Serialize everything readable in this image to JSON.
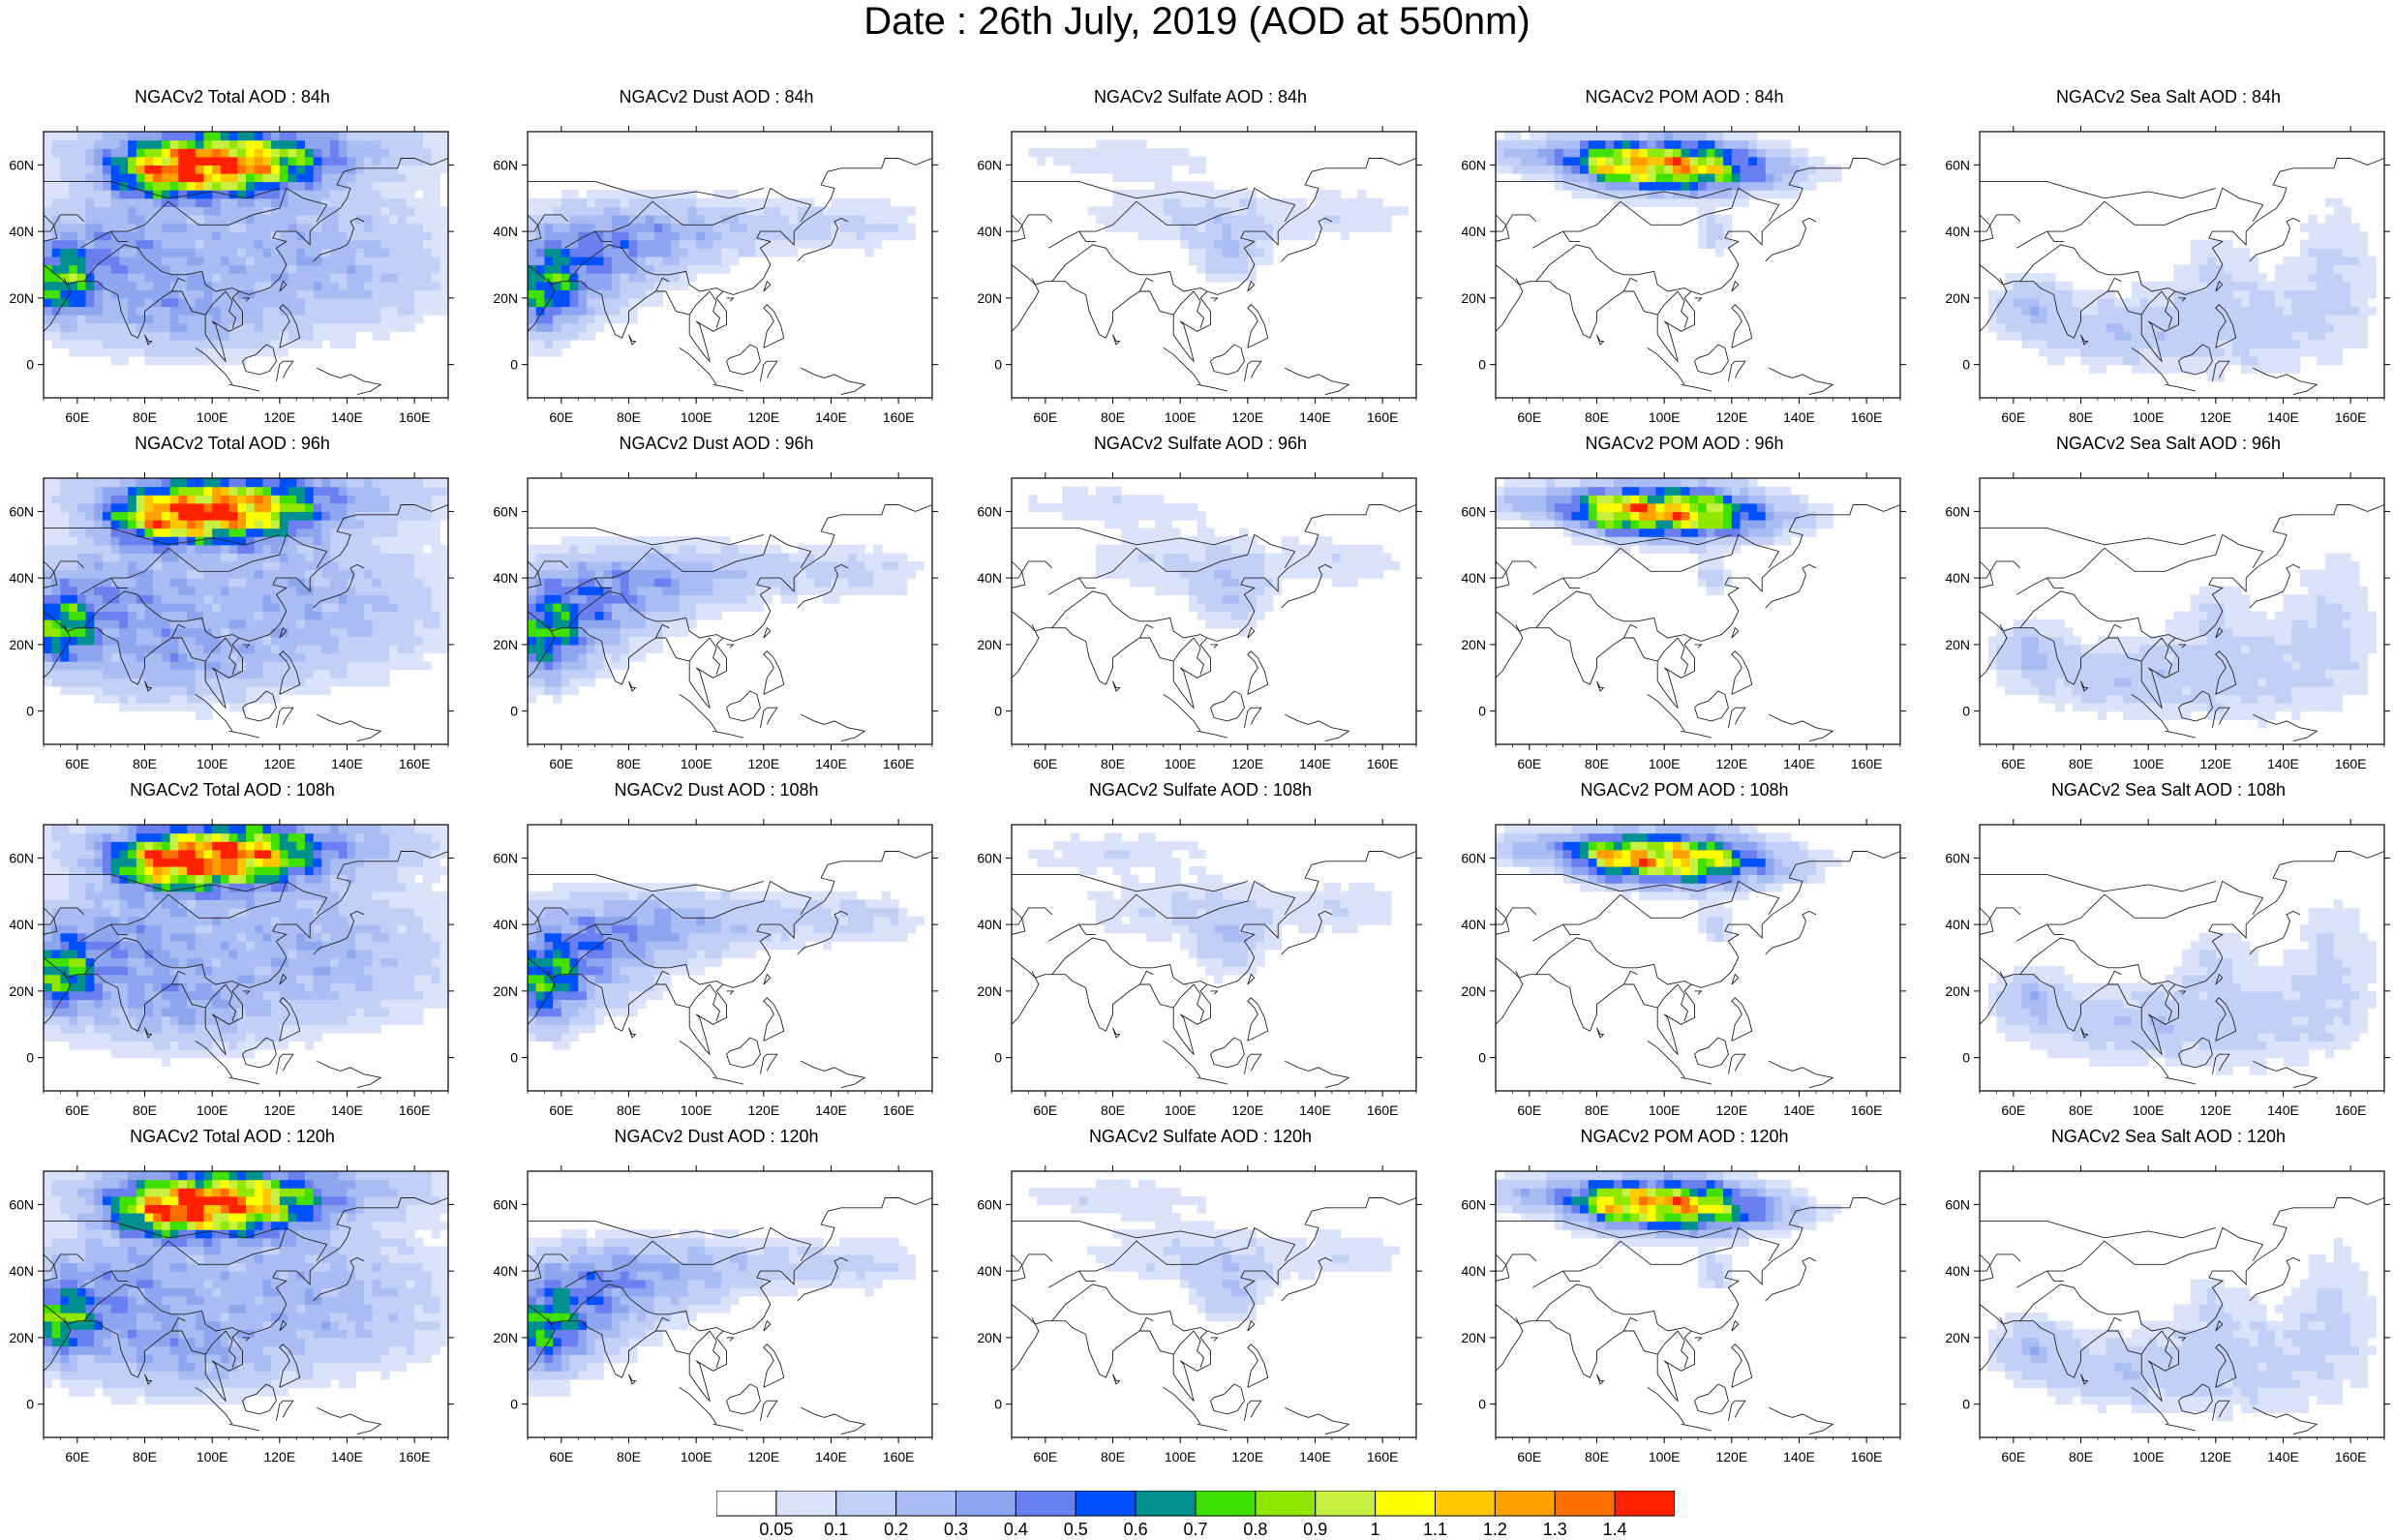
{
  "title": "Date : 26th July, 2019 (AOD at 550nm)",
  "longitude_labels": [
    "60E",
    "80E",
    "100E",
    "120E",
    "140E",
    "160E"
  ],
  "latitude_labels": [
    "60N",
    "40N",
    "20N",
    "0"
  ],
  "rows": [
    {
      "lead": "84h",
      "panels": [
        {
          "title": "NGACv2 Total AOD : 84h",
          "type": "total"
        },
        {
          "title": "NGACv2 Dust AOD : 84h",
          "type": "dust"
        },
        {
          "title": "NGACv2 Sulfate AOD : 84h",
          "type": "sulfate"
        },
        {
          "title": "NGACv2 POM AOD : 84h",
          "type": "pom"
        },
        {
          "title": "NGACv2 Sea Salt AOD : 84h",
          "type": "seasalt"
        }
      ]
    },
    {
      "lead": "96h",
      "panels": [
        {
          "title": "NGACv2 Total AOD : 96h",
          "type": "total"
        },
        {
          "title": "NGACv2 Dust AOD : 96h",
          "type": "dust"
        },
        {
          "title": "NGACv2 Sulfate AOD : 96h",
          "type": "sulfate"
        },
        {
          "title": "NGACv2 POM AOD : 96h",
          "type": "pom"
        },
        {
          "title": "NGACv2 Sea Salt AOD : 96h",
          "type": "seasalt"
        }
      ]
    },
    {
      "lead": "108h",
      "panels": [
        {
          "title": "NGACv2 Total AOD : 108h",
          "type": "total"
        },
        {
          "title": "NGACv2 Dust AOD : 108h",
          "type": "dust"
        },
        {
          "title": "NGACv2 Sulfate AOD : 108h",
          "type": "sulfate"
        },
        {
          "title": "NGACv2 POM AOD : 108h",
          "type": "pom"
        },
        {
          "title": "NGACv2 Sea Salt AOD : 108h",
          "type": "seasalt"
        }
      ]
    },
    {
      "lead": "120h",
      "panels": [
        {
          "title": "NGACv2 Total AOD : 120h",
          "type": "total"
        },
        {
          "title": "NGACv2 Dust AOD : 120h",
          "type": "dust"
        },
        {
          "title": "NGACv2 Sulfate AOD : 120h",
          "type": "sulfate"
        },
        {
          "title": "NGACv2 POM AOD : 120h",
          "type": "pom"
        },
        {
          "title": "NGACv2 Sea Salt  AOD : 120h",
          "type": "seasalt"
        }
      ]
    }
  ],
  "colorbar": {
    "labels": [
      "0.05",
      "0.1",
      "0.2",
      "0.3",
      "0.4",
      "0.5",
      "0.6",
      "0.7",
      "0.8",
      "0.9",
      "1",
      "1.1",
      "1.2",
      "1.3",
      "1.4"
    ],
    "colors": [
      "#ffffff",
      "#dbe3fb",
      "#c2d0f8",
      "#a9bcf4",
      "#8ea6ef",
      "#6a7ff0",
      "#0050ff",
      "#009090",
      "#40e000",
      "#90e800",
      "#c8f040",
      "#ffff00",
      "#ffc800",
      "#ffa000",
      "#ff7000",
      "#ff2000"
    ]
  }
}
